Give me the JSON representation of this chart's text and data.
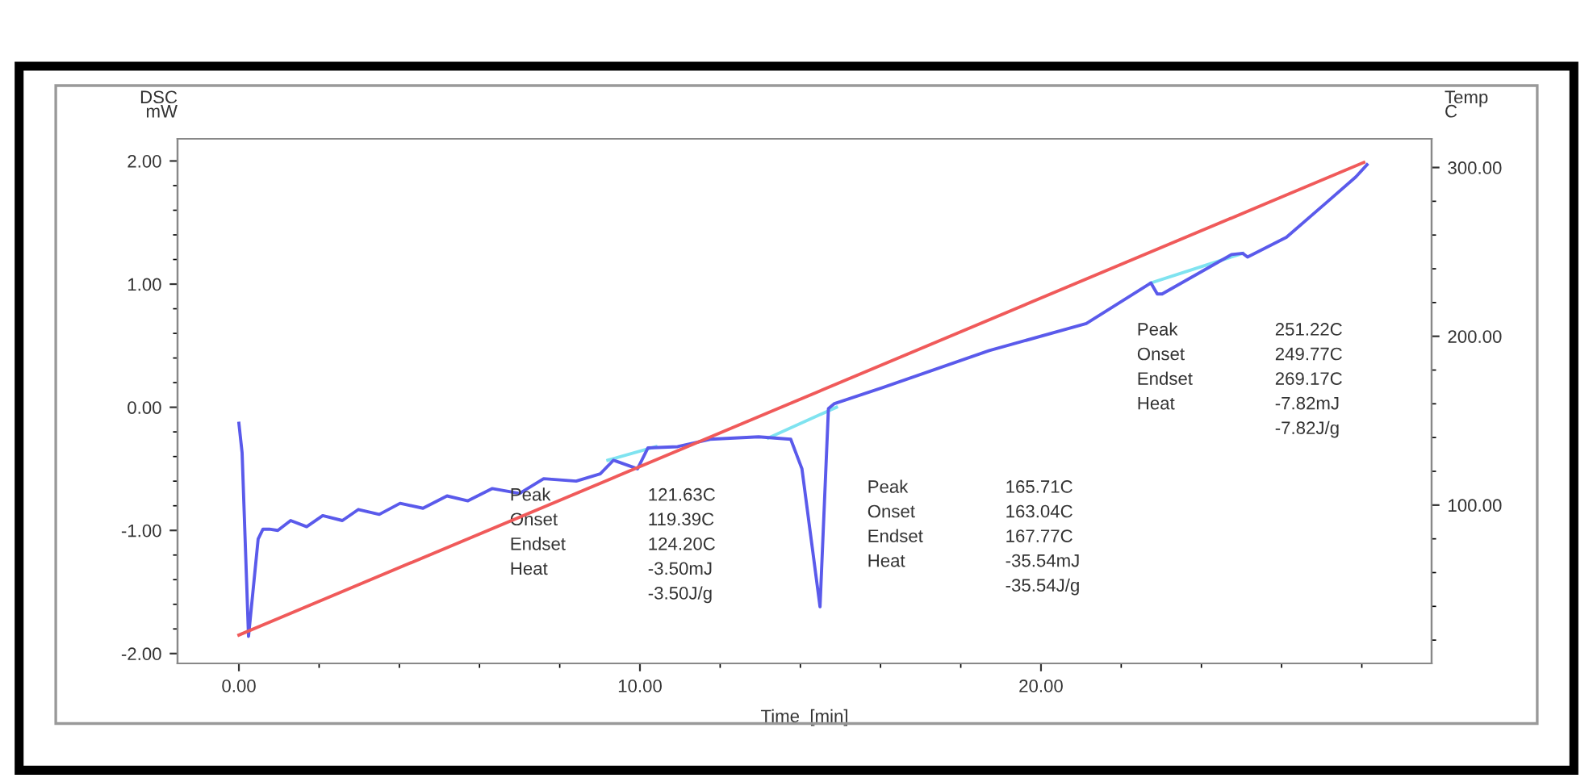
{
  "chart_data": {
    "type": "line",
    "xlabel": "Time  [min]",
    "ylabel": "DSC\nmW",
    "y2label": "Temp\nC",
    "xlim": [
      -1.53,
      29.74
    ],
    "xticks": [
      {
        "value": 0,
        "label": "0.00"
      },
      {
        "value": 10,
        "label": "10.00"
      },
      {
        "value": 20,
        "label": "20.00"
      }
    ],
    "ylim": [
      -2.08,
      2.18
    ],
    "yticks": [
      {
        "value": -2,
        "label": "-2.00"
      },
      {
        "value": -1,
        "label": "-1.00"
      },
      {
        "value": 0,
        "label": "0.00"
      },
      {
        "value": 1,
        "label": "1.00"
      },
      {
        "value": 2,
        "label": "2.00"
      }
    ],
    "y2lim": [
      6.2,
      317
    ],
    "y2ticks": [
      {
        "value": 100,
        "label": "100.00"
      },
      {
        "value": 200,
        "label": "200.00"
      },
      {
        "value": 300,
        "label": "300.00"
      }
    ],
    "grid": false,
    "marker": "none",
    "line_style": "solid",
    "series": [
      {
        "color": "#7fe3f0",
        "x": [
          9.2,
          10.4,
          null,
          13.2,
          14.9,
          null,
          22.74,
          25.03
        ],
        "values": [
          -0.43,
          -0.32,
          null,
          -0.25,
          0.0,
          null,
          1.01,
          1.25
        ]
      },
      {
        "color": "#5a5aeb",
        "x": [
          0,
          0.08,
          0.24,
          0.48,
          0.6,
          0.76,
          0.97,
          1.29,
          1.69,
          2.09,
          2.58,
          2.98,
          3.5,
          4.02,
          4.59,
          5.19,
          5.71,
          6.32,
          7.0,
          7.6,
          8.41,
          9.01,
          9.34,
          9.94,
          10.2,
          10.94,
          11.75,
          12.96,
          13.76,
          14.04,
          14.49,
          14.7,
          14.85,
          16.06,
          18.71,
          21.13,
          22.74,
          22.9,
          23.02,
          24.75,
          25.03,
          25.15,
          26.12,
          27.04,
          27.85,
          28.13
        ],
        "values": [
          -0.13,
          -0.37,
          -1.86,
          -1.07,
          -0.99,
          -0.99,
          -1.0,
          -0.92,
          -0.97,
          -0.88,
          -0.92,
          -0.83,
          -0.87,
          -0.78,
          -0.82,
          -0.72,
          -0.76,
          -0.66,
          -0.7,
          -0.58,
          -0.6,
          -0.54,
          -0.43,
          -0.5,
          -0.33,
          -0.32,
          -0.26,
          -0.24,
          -0.26,
          -0.5,
          -1.62,
          -0.01,
          0.03,
          0.16,
          0.46,
          0.68,
          1.01,
          0.92,
          0.92,
          1.24,
          1.25,
          1.22,
          1.38,
          1.64,
          1.87,
          1.97
        ]
      },
      {
        "color": "#f05a5a",
        "axis": "y2",
        "x": [
          0,
          28.05
        ],
        "values": [
          23,
          303
        ]
      }
    ],
    "annotations": [
      "Peak 121.63C\nOnset 119.39C\nEndset 124.20C\nHeat -3.50mJ\n-3.50J/g",
      "Peak 165.71C\nOnset 163.04C\nEndset 167.77C\nHeat -35.54mJ\n-35.54J/g",
      "Peak 251.22C\nOnset 249.77C\nEndset 269.17C\nHeat -7.82mJ\n-7.82J/g"
    ]
  }
}
